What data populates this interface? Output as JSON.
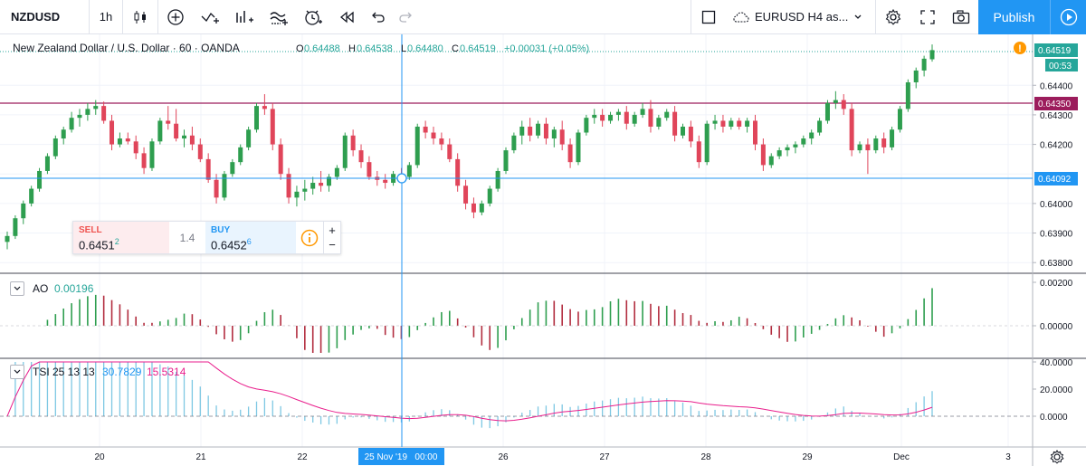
{
  "toolbar": {
    "symbol": "NZDUSD",
    "interval": "1h",
    "icons": [
      "candles-icon",
      "add-indicator-icon",
      "compare-icon",
      "indicators-icon",
      "templates-icon",
      "alert-icon",
      "replay-icon",
      "undo-icon",
      "redo-icon"
    ],
    "layout_name": "EURUSD H4 as...",
    "publish_label": "Publish"
  },
  "legend": {
    "pair": "New Zealand Dollar / U.S. Dollar · 60 · OANDA",
    "open_label": "O",
    "open": "0.64488",
    "high_label": "H",
    "high": "0.64538",
    "low_label": "L",
    "low": "0.64480",
    "close_label": "C",
    "close": "0.64519",
    "change": "+0.00031 (+0.05%)"
  },
  "price_axis": {
    "ticks": [
      "0.64400",
      "0.64300",
      "0.64200",
      "0.64000",
      "0.63900",
      "0.63800"
    ],
    "last_price": "0.64519",
    "countdown": "00:53",
    "line_level": "0.64350",
    "crosshair_price": "0.64092"
  },
  "trade_widget": {
    "sell_label": "SELL",
    "sell_price_main": "0.6451",
    "sell_price_pip": "2",
    "spread": "1.4",
    "buy_label": "BUY",
    "buy_price_main": "0.6452",
    "buy_price_pip": "6",
    "plus": "+",
    "minus": "−"
  },
  "ao": {
    "name": "AO",
    "value": "0.00196",
    "ticks": [
      "0.00200",
      "0.00000"
    ]
  },
  "tsi": {
    "name": "TSI 25 13 13",
    "value1": "30.7829",
    "value2": "15.5314",
    "ticks": [
      "40.0000",
      "20.0000",
      "0.0000"
    ]
  },
  "time_axis": {
    "labels": [
      "20",
      "21",
      "22",
      "26",
      "27",
      "28",
      "29",
      "Dec",
      "3"
    ],
    "crosshair_label": "25 Nov '19   00:00"
  },
  "colors": {
    "up": "#26a69a",
    "down": "#ef5350",
    "up_candle": "#2e9e4f",
    "down_candle": "#e0455a",
    "accent": "#2196f3",
    "level_line": "#9c1c5c",
    "tsi_line": "#e91e8c",
    "tsi_hist": "#7ec8e3"
  },
  "chart_data": {
    "type": "candlestick",
    "ohlc": [
      [
        0.6387,
        0.63905,
        0.63845,
        0.6389
      ],
      [
        0.6389,
        0.6396,
        0.6388,
        0.6395
      ],
      [
        0.6395,
        0.6401,
        0.6393,
        0.64
      ],
      [
        0.64,
        0.6406,
        0.6399,
        0.6405
      ],
      [
        0.6405,
        0.6412,
        0.6404,
        0.6411
      ],
      [
        0.6411,
        0.6417,
        0.641,
        0.6416
      ],
      [
        0.6416,
        0.6423,
        0.6415,
        0.6422
      ],
      [
        0.6422,
        0.6426,
        0.642,
        0.6425
      ],
      [
        0.6425,
        0.6431,
        0.6424,
        0.6429
      ],
      [
        0.6429,
        0.6432,
        0.6426,
        0.643
      ],
      [
        0.643,
        0.6434,
        0.6428,
        0.6432
      ],
      [
        0.6432,
        0.6435,
        0.643,
        0.6433
      ],
      [
        0.6433,
        0.64345,
        0.6427,
        0.6428
      ],
      [
        0.6428,
        0.643,
        0.6418,
        0.642
      ],
      [
        0.642,
        0.6424,
        0.6419,
        0.6422
      ],
      [
        0.6422,
        0.6424,
        0.642,
        0.6421
      ],
      [
        0.6421,
        0.6423,
        0.6415,
        0.6417
      ],
      [
        0.6417,
        0.6419,
        0.641,
        0.6412
      ],
      [
        0.6412,
        0.6422,
        0.6411,
        0.6421
      ],
      [
        0.6421,
        0.6429,
        0.642,
        0.6428
      ],
      [
        0.6428,
        0.6433,
        0.6425,
        0.6427
      ],
      [
        0.6427,
        0.6432,
        0.6421,
        0.6422
      ],
      [
        0.6422,
        0.6425,
        0.6419,
        0.6423
      ],
      [
        0.6423,
        0.6426,
        0.6418,
        0.642
      ],
      [
        0.642,
        0.6422,
        0.6414,
        0.6415
      ],
      [
        0.6415,
        0.6417,
        0.6407,
        0.6408
      ],
      [
        0.6408,
        0.641,
        0.64,
        0.6402
      ],
      [
        0.6402,
        0.6411,
        0.6401,
        0.641
      ],
      [
        0.641,
        0.6415,
        0.6409,
        0.6414
      ],
      [
        0.6414,
        0.642,
        0.6413,
        0.6419
      ],
      [
        0.6419,
        0.6426,
        0.6418,
        0.6425
      ],
      [
        0.6425,
        0.6434,
        0.6424,
        0.6433
      ],
      [
        0.6433,
        0.6437,
        0.643,
        0.6432
      ],
      [
        0.6432,
        0.6434,
        0.6418,
        0.642
      ],
      [
        0.642,
        0.6422,
        0.6408,
        0.641
      ],
      [
        0.641,
        0.6412,
        0.64,
        0.6402
      ],
      [
        0.6402,
        0.6406,
        0.6399,
        0.6404
      ],
      [
        0.6404,
        0.6408,
        0.6401,
        0.6405
      ],
      [
        0.6405,
        0.6409,
        0.6403,
        0.6407
      ],
      [
        0.6407,
        0.6411,
        0.6404,
        0.6406
      ],
      [
        0.6406,
        0.641,
        0.6404,
        0.6409
      ],
      [
        0.6409,
        0.6413,
        0.6408,
        0.6412
      ],
      [
        0.6412,
        0.6424,
        0.6411,
        0.6423
      ],
      [
        0.6423,
        0.6425,
        0.6416,
        0.6418
      ],
      [
        0.6418,
        0.642,
        0.6412,
        0.6414
      ],
      [
        0.6414,
        0.6416,
        0.6408,
        0.6409
      ],
      [
        0.6409,
        0.6411,
        0.6406,
        0.6408
      ],
      [
        0.6408,
        0.641,
        0.6405,
        0.6407
      ],
      [
        0.6407,
        0.6411,
        0.6406,
        0.641
      ],
      [
        0.641,
        0.6412,
        0.6407,
        0.6409
      ],
      [
        0.6409,
        0.6414,
        0.6408,
        0.6413
      ],
      [
        0.6413,
        0.6427,
        0.6412,
        0.6426
      ],
      [
        0.6426,
        0.6428,
        0.6422,
        0.6424
      ],
      [
        0.6424,
        0.6426,
        0.642,
        0.6422
      ],
      [
        0.6422,
        0.6424,
        0.6418,
        0.642
      ],
      [
        0.642,
        0.6422,
        0.6414,
        0.6415
      ],
      [
        0.6415,
        0.6417,
        0.6404,
        0.6406
      ],
      [
        0.6406,
        0.6408,
        0.6398,
        0.64
      ],
      [
        0.64,
        0.6402,
        0.6395,
        0.6397
      ],
      [
        0.6397,
        0.6401,
        0.6396,
        0.64
      ],
      [
        0.64,
        0.6406,
        0.6399,
        0.6405
      ],
      [
        0.6405,
        0.6412,
        0.6404,
        0.6411
      ],
      [
        0.6411,
        0.6419,
        0.641,
        0.6418
      ],
      [
        0.6418,
        0.6424,
        0.6417,
        0.6423
      ],
      [
        0.6423,
        0.6428,
        0.642,
        0.6426
      ],
      [
        0.6426,
        0.6429,
        0.6421,
        0.6423
      ],
      [
        0.6423,
        0.6428,
        0.6422,
        0.6427
      ],
      [
        0.6427,
        0.6429,
        0.642,
        0.6422
      ],
      [
        0.6422,
        0.6426,
        0.6419,
        0.6425
      ],
      [
        0.6425,
        0.6428,
        0.6418,
        0.642
      ],
      [
        0.642,
        0.6422,
        0.6412,
        0.6414
      ],
      [
        0.6414,
        0.6425,
        0.6413,
        0.6424
      ],
      [
        0.6424,
        0.643,
        0.6423,
        0.6429
      ],
      [
        0.6429,
        0.6432,
        0.6427,
        0.643
      ],
      [
        0.643,
        0.6432,
        0.6426,
        0.6428
      ],
      [
        0.6428,
        0.6431,
        0.6427,
        0.643
      ],
      [
        0.643,
        0.6432,
        0.6428,
        0.6431
      ],
      [
        0.6431,
        0.6433,
        0.6425,
        0.6427
      ],
      [
        0.6427,
        0.6431,
        0.6426,
        0.643
      ],
      [
        0.643,
        0.6434,
        0.6429,
        0.6432
      ],
      [
        0.6432,
        0.6435,
        0.6424,
        0.6426
      ],
      [
        0.6426,
        0.643,
        0.6425,
        0.6429
      ],
      [
        0.6429,
        0.6432,
        0.6428,
        0.6431
      ],
      [
        0.6431,
        0.6433,
        0.6421,
        0.6423
      ],
      [
        0.6423,
        0.6427,
        0.6422,
        0.6426
      ],
      [
        0.6426,
        0.6428,
        0.6419,
        0.6421
      ],
      [
        0.6421,
        0.6423,
        0.6412,
        0.6414
      ],
      [
        0.6414,
        0.6428,
        0.6413,
        0.6427
      ],
      [
        0.6427,
        0.643,
        0.6425,
        0.6428
      ],
      [
        0.6428,
        0.643,
        0.6424,
        0.6426
      ],
      [
        0.6426,
        0.6429,
        0.6425,
        0.6428
      ],
      [
        0.6428,
        0.6429,
        0.6425,
        0.6426
      ],
      [
        0.6426,
        0.6429,
        0.6424,
        0.6428
      ],
      [
        0.6428,
        0.643,
        0.6418,
        0.642
      ],
      [
        0.642,
        0.6422,
        0.6411,
        0.6413
      ],
      [
        0.6413,
        0.6417,
        0.6412,
        0.6416
      ],
      [
        0.6416,
        0.6419,
        0.6415,
        0.6418
      ],
      [
        0.6418,
        0.642,
        0.6416,
        0.6419
      ],
      [
        0.6419,
        0.6421,
        0.6417,
        0.642
      ],
      [
        0.642,
        0.6423,
        0.6419,
        0.6422
      ],
      [
        0.6422,
        0.6425,
        0.642,
        0.6424
      ],
      [
        0.6424,
        0.6429,
        0.6423,
        0.6428
      ],
      [
        0.6428,
        0.6435,
        0.6427,
        0.6434
      ],
      [
        0.6434,
        0.6438,
        0.6432,
        0.6435
      ],
      [
        0.6435,
        0.6437,
        0.643,
        0.6432
      ],
      [
        0.6432,
        0.6434,
        0.6416,
        0.6418
      ],
      [
        0.6418,
        0.6421,
        0.6417,
        0.642
      ],
      [
        0.642,
        0.6422,
        0.641,
        0.6418
      ],
      [
        0.6418,
        0.6423,
        0.6417,
        0.6422
      ],
      [
        0.6422,
        0.6424,
        0.6417,
        0.6419
      ],
      [
        0.6419,
        0.6426,
        0.6418,
        0.6425
      ],
      [
        0.6425,
        0.6433,
        0.6424,
        0.6432
      ],
      [
        0.6432,
        0.6442,
        0.6431,
        0.6441
      ],
      [
        0.6441,
        0.6446,
        0.6439,
        0.6445
      ],
      [
        0.6445,
        0.645,
        0.6443,
        0.6449
      ],
      [
        0.64488,
        0.64538,
        0.6448,
        0.64519
      ]
    ],
    "ylim": [
      0.6377,
      0.6456
    ]
  }
}
